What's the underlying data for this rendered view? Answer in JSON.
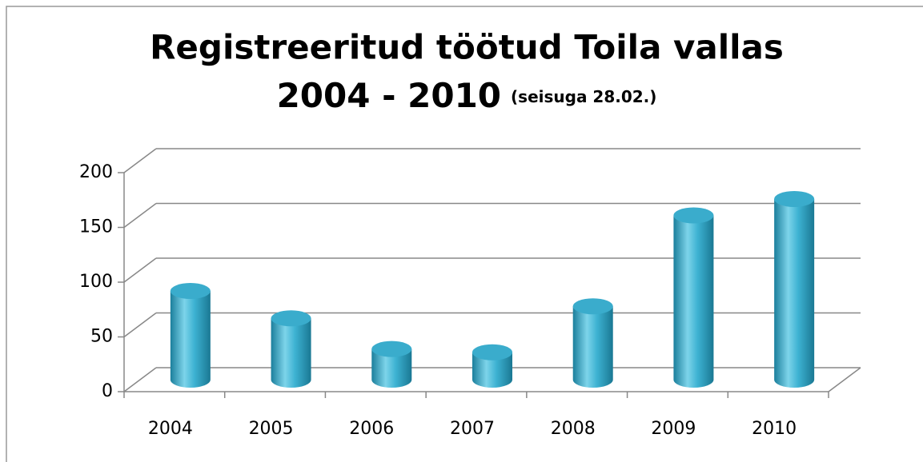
{
  "chart_data": {
    "type": "bar3d",
    "title": [
      "Registreeritud töötud Toila vallas",
      "2004 - 2010"
    ],
    "subtitle": "(seisuga 28.02.)",
    "categories": [
      "2004",
      "2005",
      "2006",
      "2007",
      "2008",
      "2009",
      "2010"
    ],
    "values": [
      81,
      56,
      28,
      25,
      67,
      150,
      165
    ],
    "color": "#3aaccc",
    "ylim": [
      0,
      200
    ],
    "yticks": [
      0,
      50,
      100,
      150,
      200
    ],
    "grid": true
  }
}
